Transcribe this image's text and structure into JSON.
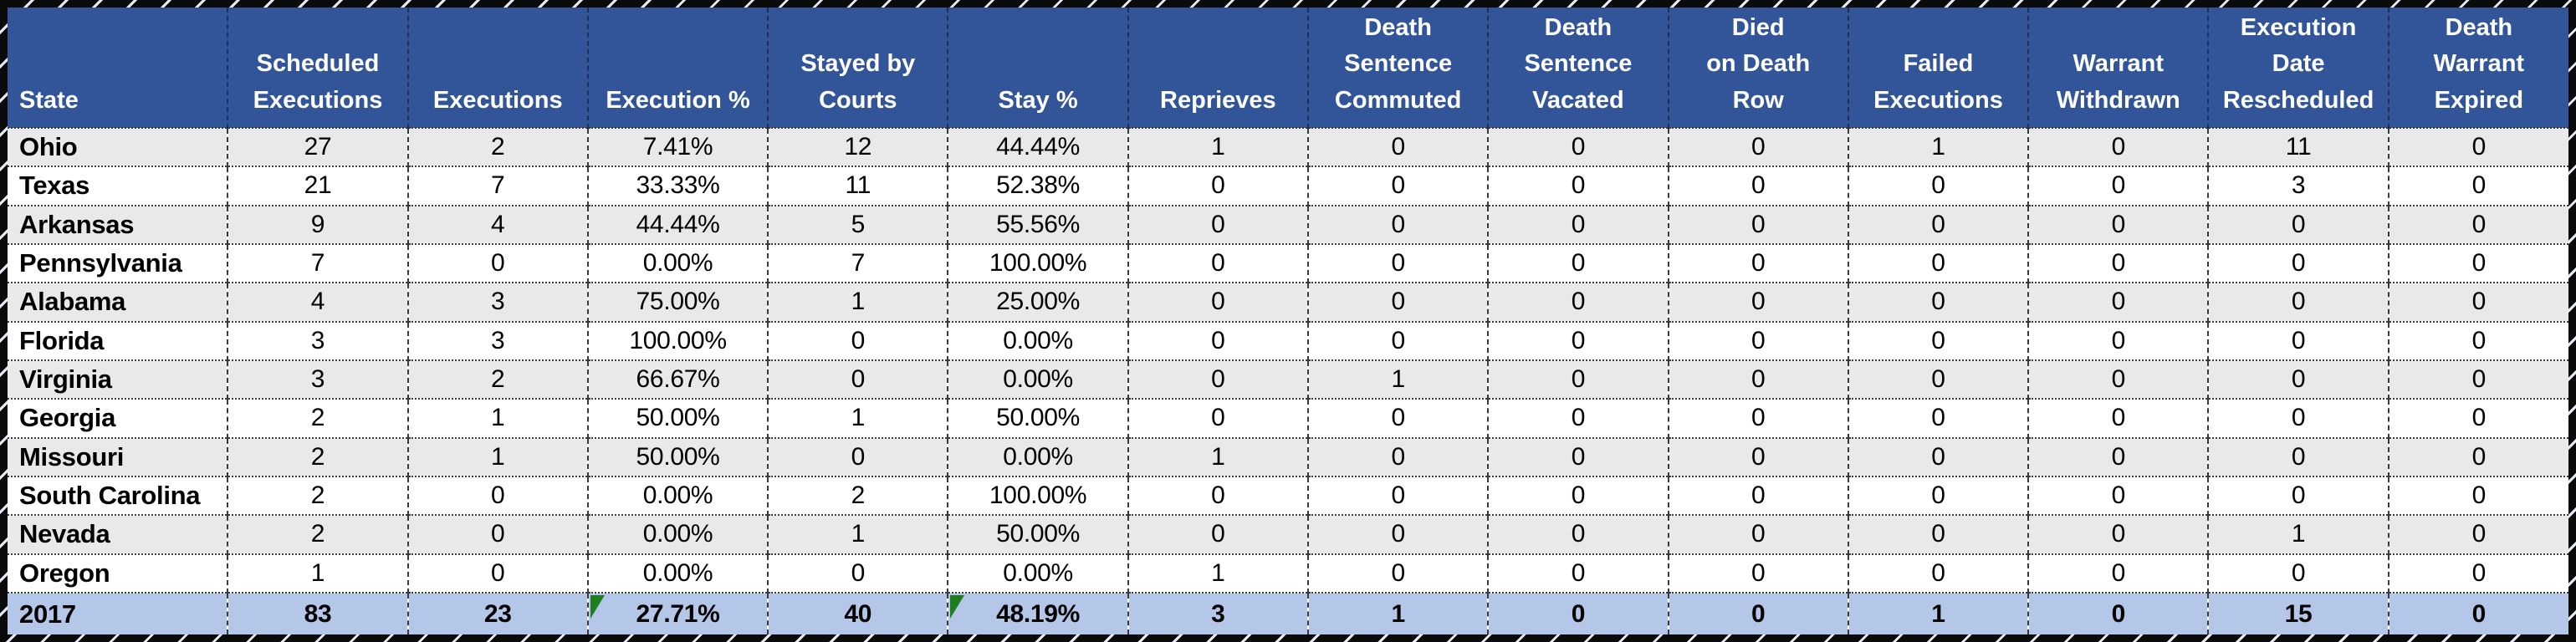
{
  "colors": {
    "header_bg": "#32559A",
    "header_text": "#FFFFFF",
    "row_alt": "#E9E9E9",
    "row_white": "#FFFFFF",
    "total_bg": "#B4C7E9",
    "gridline": "#3a3a3a",
    "frame": "#0a0a0a",
    "flag_green": "#1E7E1E",
    "text": "#000000"
  },
  "table": {
    "columns": [
      {
        "name": "state",
        "label": "State"
      },
      {
        "name": "scheduled-executions",
        "label": "Scheduled\nExecutions"
      },
      {
        "name": "executions",
        "label": "Executions"
      },
      {
        "name": "execution-pct",
        "label": "Execution %"
      },
      {
        "name": "stayed-by-courts",
        "label": "Stayed by\nCourts"
      },
      {
        "name": "stay-pct",
        "label": "Stay %"
      },
      {
        "name": "reprieves",
        "label": "Reprieves"
      },
      {
        "name": "death-sentence-commuted",
        "label": "Death\nSentence\nCommuted"
      },
      {
        "name": "death-sentence-vacated",
        "label": "Death\nSentence\nVacated"
      },
      {
        "name": "died-on-death-row",
        "label": "Died\non Death\nRow"
      },
      {
        "name": "failed-executions",
        "label": "Failed\nExecutions"
      },
      {
        "name": "warrant-withdrawn",
        "label": "Warrant\nWithdrawn"
      },
      {
        "name": "execution-date-rescheduled",
        "label": "Execution\nDate\nRescheduled"
      },
      {
        "name": "death-warrant-expired",
        "label": "Death\nWarrant\nExpired"
      }
    ],
    "rows": [
      {
        "state": "Ohio",
        "values": [
          "27",
          "2",
          "7.41%",
          "12",
          "44.44%",
          "1",
          "0",
          "0",
          "0",
          "1",
          "0",
          "11",
          "0"
        ]
      },
      {
        "state": "Texas",
        "values": [
          "21",
          "7",
          "33.33%",
          "11",
          "52.38%",
          "0",
          "0",
          "0",
          "0",
          "0",
          "0",
          "3",
          "0"
        ]
      },
      {
        "state": "Arkansas",
        "values": [
          "9",
          "4",
          "44.44%",
          "5",
          "55.56%",
          "0",
          "0",
          "0",
          "0",
          "0",
          "0",
          "0",
          "0"
        ]
      },
      {
        "state": "Pennsylvania",
        "values": [
          "7",
          "0",
          "0.00%",
          "7",
          "100.00%",
          "0",
          "0",
          "0",
          "0",
          "0",
          "0",
          "0",
          "0"
        ]
      },
      {
        "state": "Alabama",
        "values": [
          "4",
          "3",
          "75.00%",
          "1",
          "25.00%",
          "0",
          "0",
          "0",
          "0",
          "0",
          "0",
          "0",
          "0"
        ]
      },
      {
        "state": "Florida",
        "values": [
          "3",
          "3",
          "100.00%",
          "0",
          "0.00%",
          "0",
          "0",
          "0",
          "0",
          "0",
          "0",
          "0",
          "0"
        ]
      },
      {
        "state": "Virginia",
        "values": [
          "3",
          "2",
          "66.67%",
          "0",
          "0.00%",
          "0",
          "1",
          "0",
          "0",
          "0",
          "0",
          "0",
          "0"
        ]
      },
      {
        "state": "Georgia",
        "values": [
          "2",
          "1",
          "50.00%",
          "1",
          "50.00%",
          "0",
          "0",
          "0",
          "0",
          "0",
          "0",
          "0",
          "0"
        ]
      },
      {
        "state": "Missouri",
        "values": [
          "2",
          "1",
          "50.00%",
          "0",
          "0.00%",
          "1",
          "0",
          "0",
          "0",
          "0",
          "0",
          "0",
          "0"
        ]
      },
      {
        "state": "South Carolina",
        "values": [
          "2",
          "0",
          "0.00%",
          "2",
          "100.00%",
          "0",
          "0",
          "0",
          "0",
          "0",
          "0",
          "0",
          "0"
        ]
      },
      {
        "state": "Nevada",
        "values": [
          "2",
          "0",
          "0.00%",
          "1",
          "50.00%",
          "0",
          "0",
          "0",
          "0",
          "0",
          "0",
          "1",
          "0"
        ]
      },
      {
        "state": "Oregon",
        "values": [
          "1",
          "0",
          "0.00%",
          "0",
          "0.00%",
          "1",
          "0",
          "0",
          "0",
          "0",
          "0",
          "0",
          "0"
        ]
      }
    ],
    "total_row": {
      "state": "2017",
      "values": [
        "83",
        "23",
        "27.71%",
        "40",
        "48.19%",
        "3",
        "1",
        "0",
        "0",
        "1",
        "0",
        "15",
        "0"
      ],
      "flag_indices": [
        2,
        4
      ]
    }
  }
}
